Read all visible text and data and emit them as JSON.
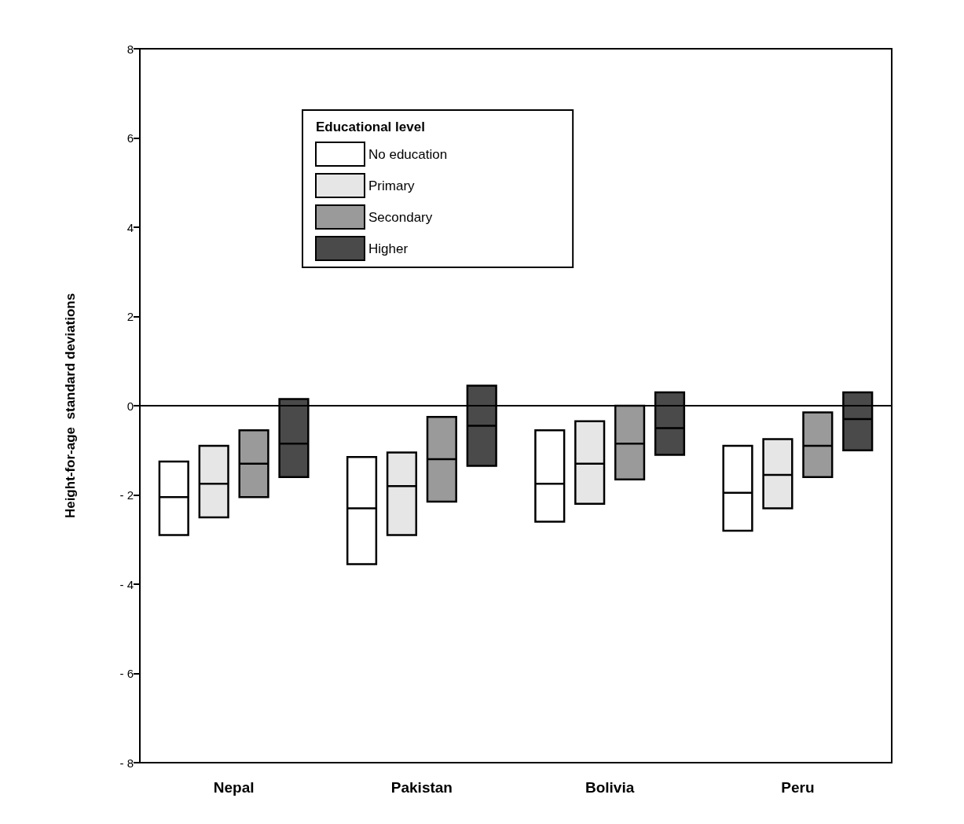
{
  "chart_data": {
    "type": "box",
    "ylabel": "Height-for-age  standard deviations",
    "legend_title": "Educational level",
    "categories": [
      "Nepal",
      "Pakistan",
      "Bolivia",
      "Peru"
    ],
    "ylim": [
      -8,
      8
    ],
    "yticks": [
      {
        "value": -8,
        "label": "- 8"
      },
      {
        "value": -6,
        "label": "- 6"
      },
      {
        "value": -4,
        "label": "- 4"
      },
      {
        "value": -2,
        "label": "- 2"
      },
      0,
      2,
      4,
      6,
      8
    ],
    "grid": false,
    "legend": "top left",
    "ref_lines": [
      {
        "axis": "y",
        "value": 0
      }
    ],
    "series": [
      {
        "name": "No education",
        "color": "#ffffff",
        "boxes": [
          {
            "low": -2.9,
            "q1": -2.9,
            "median": -2.05,
            "q3": -1.25,
            "high": -1.25
          },
          {
            "low": -3.55,
            "q1": -3.55,
            "median": -2.3,
            "q3": -1.15,
            "high": -1.15
          },
          {
            "low": -2.6,
            "q1": -2.6,
            "median": -1.75,
            "q3": -0.55,
            "high": -0.55
          },
          {
            "low": -2.8,
            "q1": -2.8,
            "median": -1.95,
            "q3": -0.9,
            "high": -0.9
          }
        ]
      },
      {
        "name": "Primary",
        "color": "#e6e6e6",
        "boxes": [
          {
            "low": -2.5,
            "q1": -2.5,
            "median": -1.75,
            "q3": -0.9,
            "high": -0.9
          },
          {
            "low": -2.9,
            "q1": -2.9,
            "median": -1.8,
            "q3": -1.05,
            "high": -1.05
          },
          {
            "low": -2.2,
            "q1": -2.2,
            "median": -1.3,
            "q3": -0.35,
            "high": -0.35
          },
          {
            "low": -2.3,
            "q1": -2.3,
            "median": -1.55,
            "q3": -0.75,
            "high": -0.75
          }
        ]
      },
      {
        "name": "Secondary",
        "color": "#9a9a9a",
        "boxes": [
          {
            "low": -2.05,
            "q1": -2.05,
            "median": -1.3,
            "q3": -0.55,
            "high": -0.55
          },
          {
            "low": -2.15,
            "q1": -2.15,
            "median": -1.2,
            "q3": -0.25,
            "high": -0.25
          },
          {
            "low": -1.65,
            "q1": -1.65,
            "median": -0.85,
            "q3": 0,
            "high": 0
          },
          {
            "low": -1.6,
            "q1": -1.6,
            "median": -0.9,
            "q3": -0.15,
            "high": -0.15
          }
        ]
      },
      {
        "name": "Higher",
        "color": "#4a4a4a",
        "boxes": [
          {
            "low": -1.6,
            "q1": -1.6,
            "median": -0.85,
            "q3": 0.15,
            "high": 0.15
          },
          {
            "low": -1.35,
            "q1": -1.35,
            "median": -0.45,
            "q3": 0.45,
            "high": 0.45
          },
          {
            "low": -1.1,
            "q1": -1.1,
            "median": -0.5,
            "q3": 0.3,
            "high": 0.3
          },
          {
            "low": -1.0,
            "q1": -1.0,
            "median": -0.3,
            "q3": 0.3,
            "high": 0.3
          }
        ]
      }
    ]
  }
}
